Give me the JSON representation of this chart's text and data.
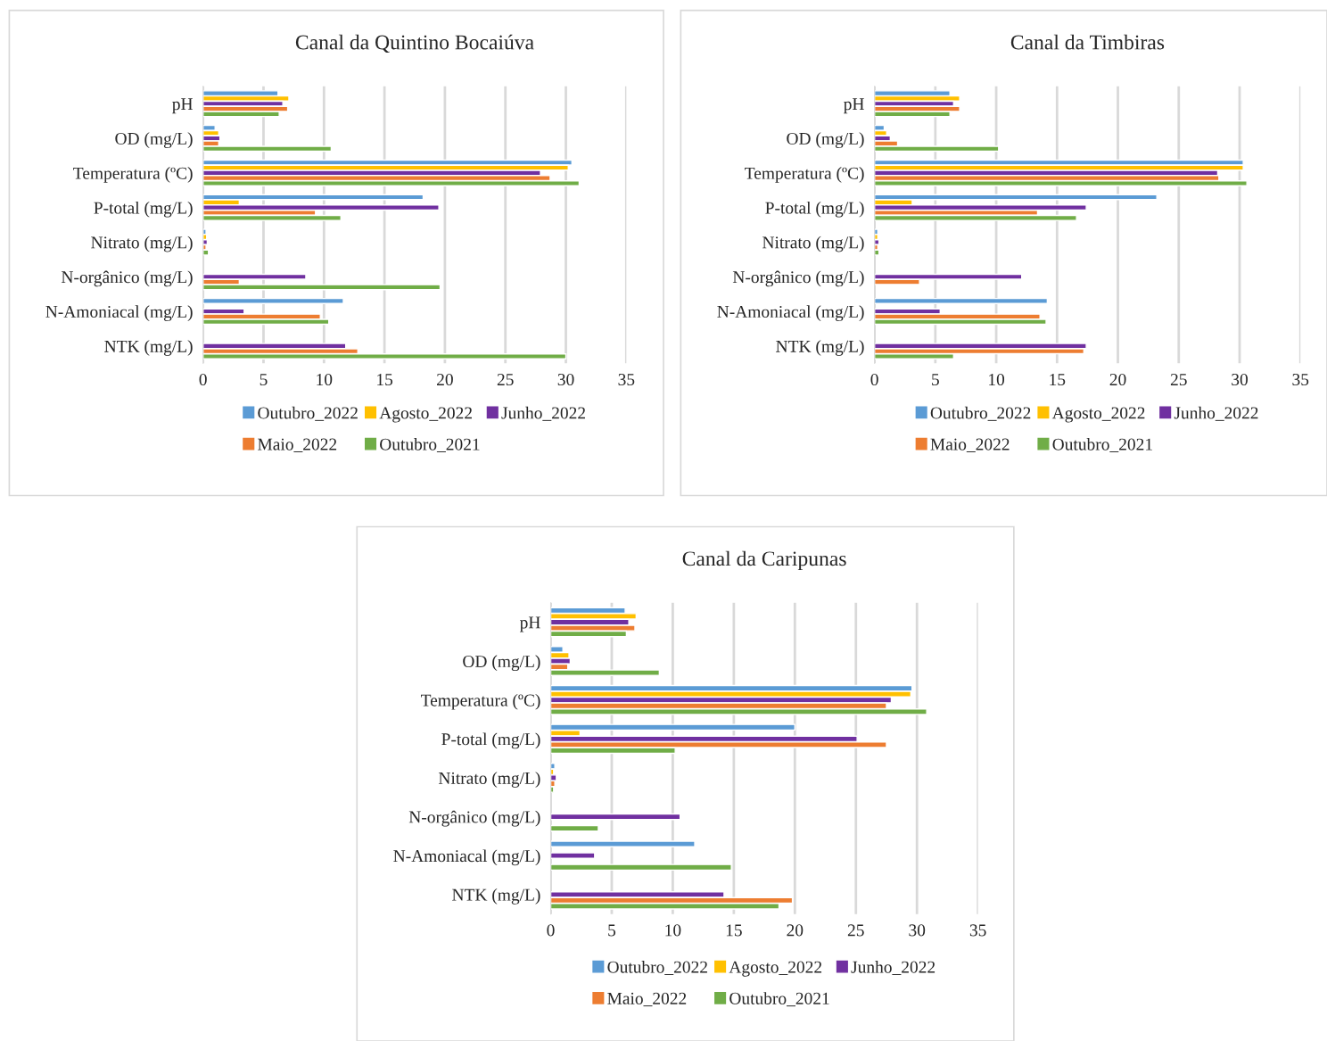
{
  "chart_data": [
    {
      "type": "bar",
      "orientation": "horizontal",
      "title": "Canal da Quintino Bocaiúva",
      "categories": [
        "pH",
        "OD (mg/L)",
        "Temperatura (ºC)",
        "P-total (mg/L)",
        "Nitrato (mg/L)",
        "N-orgânico (mg/L)",
        "N-Amoniacal (mg/L)",
        "NTK (mg/L)"
      ],
      "xlim": [
        0,
        35
      ],
      "xticks": [
        0,
        5,
        10,
        15,
        20,
        25,
        30,
        35
      ],
      "grid": "x",
      "legend": "bottom",
      "series": [
        {
          "name": "Outubro_2022",
          "color": "#5b9bd5",
          "values": [
            6.2,
            1.0,
            30.5,
            18.2,
            0.25,
            null,
            11.6,
            null
          ]
        },
        {
          "name": "Agosto_2022",
          "color": "#ffc000",
          "values": [
            7.1,
            1.3,
            30.2,
            3.0,
            0.3,
            null,
            null,
            null
          ]
        },
        {
          "name": "Junho_2022",
          "color": "#7030a0",
          "values": [
            6.6,
            1.4,
            27.9,
            19.5,
            0.35,
            8.5,
            3.4,
            11.8
          ]
        },
        {
          "name": "Maio_2022",
          "color": "#ed7d31",
          "values": [
            7.0,
            1.3,
            28.7,
            9.3,
            0.25,
            3.0,
            9.7,
            12.8
          ]
        },
        {
          "name": "Outubro_2021",
          "color": "#70ad47",
          "values": [
            6.3,
            10.6,
            31.1,
            11.4,
            0.45,
            19.6,
            10.4,
            30.0
          ]
        }
      ]
    },
    {
      "type": "bar",
      "orientation": "horizontal",
      "title": "Canal da Timbiras",
      "categories": [
        "pH",
        "OD (mg/L)",
        "Temperatura (ºC)",
        "P-total (mg/L)",
        "Nitrato (mg/L)",
        "N-orgânico (mg/L)",
        "N-Amoniacal (mg/L)",
        "NTK (mg/L)"
      ],
      "xlim": [
        0,
        35
      ],
      "xticks": [
        0,
        5,
        10,
        15,
        20,
        25,
        30,
        35
      ],
      "grid": "x",
      "legend": "bottom",
      "series": [
        {
          "name": "Outubro_2022",
          "color": "#5b9bd5",
          "values": [
            6.2,
            0.8,
            30.3,
            23.2,
            0.27,
            null,
            14.2,
            null
          ]
        },
        {
          "name": "Agosto_2022",
          "color": "#ffc000",
          "values": [
            7.0,
            1.0,
            30.3,
            3.1,
            0.27,
            null,
            null,
            null
          ]
        },
        {
          "name": "Junho_2022",
          "color": "#7030a0",
          "values": [
            6.5,
            1.3,
            28.2,
            17.4,
            0.37,
            12.1,
            5.4,
            17.4
          ]
        },
        {
          "name": "Maio_2022",
          "color": "#ed7d31",
          "values": [
            7.0,
            1.9,
            28.3,
            13.4,
            0.27,
            3.7,
            13.6,
            17.2
          ]
        },
        {
          "name": "Outubro_2021",
          "color": "#70ad47",
          "values": [
            6.2,
            10.2,
            30.6,
            16.6,
            0.37,
            null,
            14.1,
            6.5
          ]
        }
      ]
    },
    {
      "type": "bar",
      "orientation": "horizontal",
      "title": "Canal da Caripunas",
      "categories": [
        "pH",
        "OD (mg/L)",
        "Temperatura (ºC)",
        "P-total (mg/L)",
        "Nitrato (mg/L)",
        "N-orgânico (mg/L)",
        "N-Amoniacal (mg/L)",
        "NTK (mg/L)"
      ],
      "xlim": [
        0,
        35
      ],
      "xticks": [
        0,
        5,
        10,
        15,
        20,
        25,
        30,
        35
      ],
      "grid": "x",
      "legend": "bottom",
      "series": [
        {
          "name": "Outubro_2022",
          "color": "#5b9bd5",
          "values": [
            6.1,
            1.0,
            29.6,
            20.0,
            0.34,
            null,
            11.8,
            null
          ]
        },
        {
          "name": "Agosto_2022",
          "color": "#ffc000",
          "values": [
            7.0,
            1.5,
            29.5,
            2.4,
            0.24,
            null,
            null,
            null
          ]
        },
        {
          "name": "Junho_2022",
          "color": "#7030a0",
          "values": [
            6.4,
            1.6,
            27.9,
            25.1,
            0.46,
            10.6,
            3.6,
            14.2
          ]
        },
        {
          "name": "Maio_2022",
          "color": "#ed7d31",
          "values": [
            6.9,
            1.4,
            27.5,
            27.5,
            0.34,
            null,
            null,
            19.8
          ]
        },
        {
          "name": "Outubro_2021",
          "color": "#70ad47",
          "values": [
            6.2,
            8.9,
            30.8,
            10.2,
            0.24,
            3.9,
            14.8,
            18.7
          ]
        }
      ]
    }
  ]
}
